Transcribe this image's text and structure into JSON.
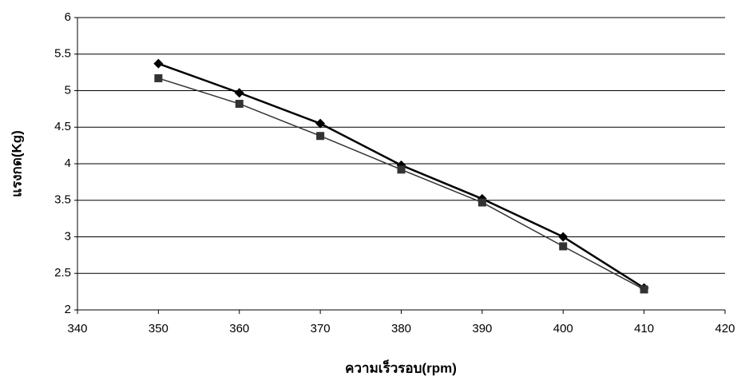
{
  "chart_data": {
    "type": "line",
    "xlabel": "ความเร็วรอบ(rpm)",
    "ylabel": "แรงกด(Kg)",
    "x": [
      350,
      360,
      370,
      380,
      390,
      400,
      410
    ],
    "series": [
      {
        "color": "#000000",
        "marker": "diamond",
        "values": [
          5.37,
          4.97,
          4.55,
          3.98,
          3.52,
          3.0,
          2.3
        ]
      },
      {
        "color": "#333333",
        "marker": "square",
        "values": [
          5.17,
          4.82,
          4.38,
          3.92,
          3.47,
          2.87,
          2.28
        ]
      }
    ],
    "xlim": [
      340,
      420
    ],
    "xticks": [
      340,
      350,
      360,
      370,
      380,
      390,
      400,
      410,
      420
    ],
    "ylim": [
      2,
      6
    ],
    "yticks": [
      2,
      2.5,
      3,
      3.5,
      4,
      4.5,
      5,
      5.5,
      6
    ],
    "grid": true
  }
}
